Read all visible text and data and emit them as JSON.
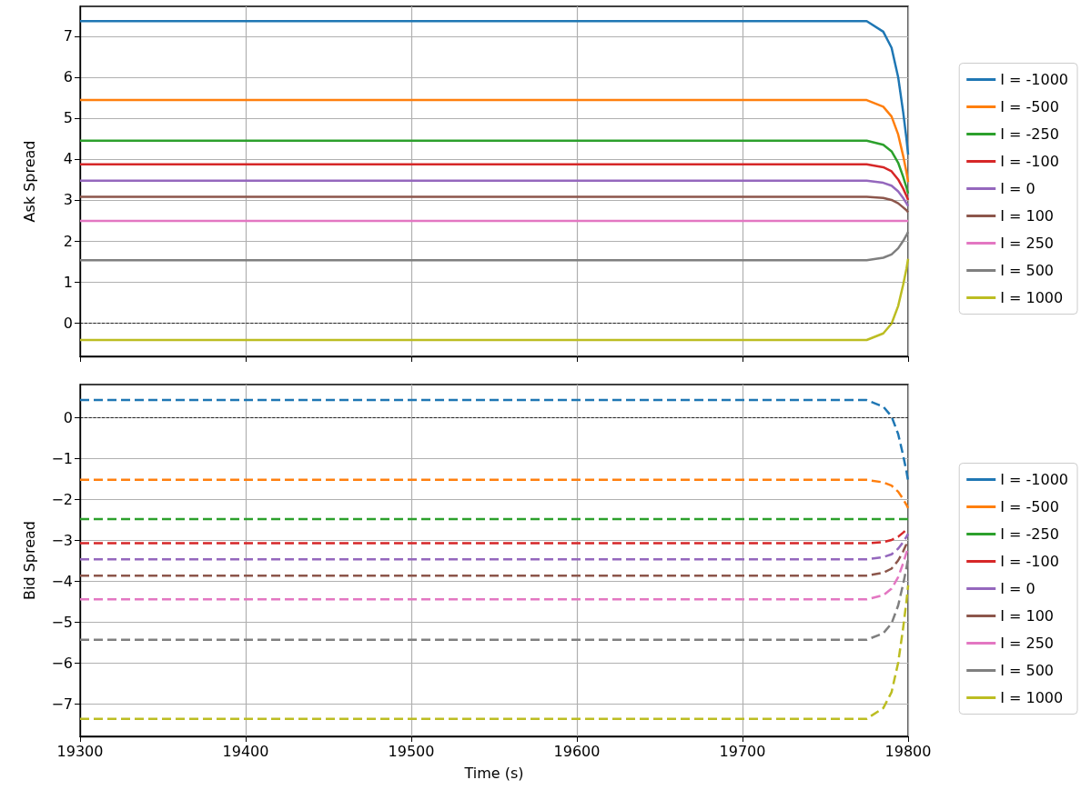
{
  "chart_data": [
    {
      "type": "line",
      "ylabel": "Ask Spread",
      "x": [
        19300,
        19775,
        19785,
        19790,
        19794,
        19797,
        19799,
        19800
      ],
      "xlim": [
        19300,
        19800
      ],
      "xticks": [
        19300,
        19400,
        19500,
        19600,
        19700,
        19800
      ],
      "ylim": [
        -0.82,
        7.73
      ],
      "yticks": [
        0,
        1,
        2,
        3,
        4,
        5,
        6,
        7
      ],
      "tick_labels": "y",
      "grid": true,
      "legend": "right",
      "marker": "none",
      "line_style": "solid",
      "ref_lines": [
        {
          "axis": "y",
          "value": 0,
          "color": "#000000",
          "line_style": "dashed"
        }
      ],
      "series": [
        {
          "name": "I = -1000",
          "color": "#1f77b4",
          "values": [
            7.37,
            7.37,
            7.11,
            6.72,
            6.0,
            5.15,
            4.5,
            4.11
          ]
        },
        {
          "name": "I = -500",
          "color": "#ff7f0e",
          "values": [
            5.44,
            5.44,
            5.28,
            5.04,
            4.6,
            4.08,
            3.68,
            3.44
          ]
        },
        {
          "name": "I = -250",
          "color": "#2ca02c",
          "values": [
            4.45,
            4.45,
            4.35,
            4.19,
            3.91,
            3.57,
            3.31,
            3.16
          ]
        },
        {
          "name": "I = -100",
          "color": "#d62728",
          "values": [
            3.87,
            3.87,
            3.8,
            3.7,
            3.5,
            3.28,
            3.1,
            3.0
          ]
        },
        {
          "name": "I = 0",
          "color": "#9467bd",
          "values": [
            3.47,
            3.47,
            3.42,
            3.35,
            3.21,
            3.05,
            2.92,
            2.85
          ]
        },
        {
          "name": "I = 100",
          "color": "#8c564b",
          "values": [
            3.08,
            3.08,
            3.05,
            3.0,
            2.92,
            2.82,
            2.75,
            2.7
          ]
        },
        {
          "name": "I = 250",
          "color": "#e377c2",
          "values": [
            2.49,
            2.49,
            2.49,
            2.49,
            2.49,
            2.49,
            2.49,
            2.49
          ]
        },
        {
          "name": "I = 500",
          "color": "#7f7f7f",
          "values": [
            1.53,
            1.53,
            1.59,
            1.67,
            1.82,
            2.0,
            2.14,
            2.22
          ]
        },
        {
          "name": "I = 1000",
          "color": "#bcbd22",
          "values": [
            -0.42,
            -0.42,
            -0.26,
            -0.02,
            0.41,
            0.93,
            1.32,
            1.56
          ]
        }
      ]
    },
    {
      "type": "line",
      "ylabel": "Bid Spread",
      "xlabel": "Time (s)",
      "x": [
        19300,
        19775,
        19785,
        19790,
        19794,
        19797,
        19799,
        19800
      ],
      "xlim": [
        19300,
        19800
      ],
      "xticks": [
        19300,
        19400,
        19500,
        19600,
        19700,
        19800
      ],
      "ylim": [
        -7.8,
        0.8
      ],
      "yticks": [
        {
          "value": -7,
          "label": "−7"
        },
        {
          "value": -6,
          "label": "−6"
        },
        {
          "value": -5,
          "label": "−5"
        },
        {
          "value": -4,
          "label": "−4"
        },
        {
          "value": -3,
          "label": "−3"
        },
        {
          "value": -2,
          "label": "−2"
        },
        {
          "value": -1,
          "label": "−1"
        },
        0
      ],
      "grid": true,
      "legend": "right",
      "marker": "none",
      "line_style": "dashed",
      "ref_lines": [
        {
          "axis": "y",
          "value": 0,
          "color": "#000000",
          "line_style": "dashed"
        }
      ],
      "series": [
        {
          "name": "I = -1000",
          "color": "#1f77b4",
          "values": [
            0.42,
            0.42,
            0.26,
            0.02,
            -0.41,
            -0.93,
            -1.32,
            -1.56
          ]
        },
        {
          "name": "I = -500",
          "color": "#ff7f0e",
          "values": [
            -1.53,
            -1.53,
            -1.59,
            -1.67,
            -1.82,
            -2.0,
            -2.14,
            -2.22
          ]
        },
        {
          "name": "I = -250",
          "color": "#2ca02c",
          "values": [
            -2.49,
            -2.49,
            -2.49,
            -2.49,
            -2.49,
            -2.49,
            -2.49,
            -2.49
          ]
        },
        {
          "name": "I = -100",
          "color": "#d62728",
          "values": [
            -3.08,
            -3.08,
            -3.05,
            -3.0,
            -2.92,
            -2.82,
            -2.75,
            -2.7
          ]
        },
        {
          "name": "I = 0",
          "color": "#9467bd",
          "values": [
            -3.47,
            -3.47,
            -3.42,
            -3.35,
            -3.21,
            -3.05,
            -2.92,
            -2.85
          ]
        },
        {
          "name": "I = 100",
          "color": "#8c564b",
          "values": [
            -3.87,
            -3.87,
            -3.8,
            -3.7,
            -3.5,
            -3.28,
            -3.1,
            -3.0
          ]
        },
        {
          "name": "I = 250",
          "color": "#e377c2",
          "values": [
            -4.45,
            -4.45,
            -4.35,
            -4.19,
            -3.91,
            -3.57,
            -3.31,
            -3.16
          ]
        },
        {
          "name": "I = 500",
          "color": "#7f7f7f",
          "values": [
            -5.44,
            -5.44,
            -5.28,
            -5.04,
            -4.6,
            -4.08,
            -3.68,
            -3.44
          ]
        },
        {
          "name": "I = 1000",
          "color": "#bcbd22",
          "values": [
            -7.37,
            -7.37,
            -7.11,
            -6.72,
            -6.0,
            -5.15,
            -4.5,
            -4.11
          ]
        }
      ]
    }
  ]
}
